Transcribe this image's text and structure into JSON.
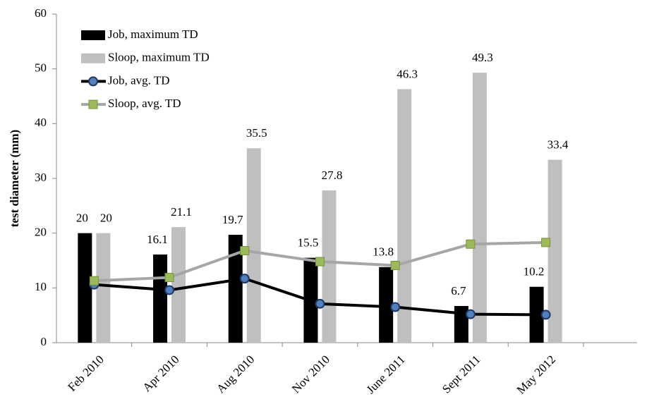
{
  "chart_data": {
    "type": "bar",
    "y_label": "test diameter (mm)",
    "categories": [
      "Feb 2010",
      "Apr 2010",
      "Aug 2010",
      "Nov 2010",
      "June 2011",
      "Sept 2011",
      "May 2012"
    ],
    "series": [
      {
        "name": "Job, maximum TD",
        "type": "bar",
        "color": "#000000",
        "values": [
          20,
          16.1,
          19.7,
          15.5,
          13.8,
          6.7,
          10.2
        ]
      },
      {
        "name": "Sloop, maximum TD",
        "type": "bar",
        "color": "#bfbfbf",
        "values": [
          20,
          21.1,
          35.5,
          27.8,
          46.3,
          49.3,
          33.4
        ]
      },
      {
        "name": "Job, avg. TD",
        "type": "line",
        "color": "#000000",
        "marker": "circle",
        "marker_color": "#1f3864",
        "values": [
          10.6,
          9.6,
          11.7,
          7.1,
          6.5,
          5.2,
          5.1
        ]
      },
      {
        "name": "Sloop, avg. TD",
        "type": "line",
        "color": "#a6a6a6",
        "marker": "square",
        "marker_color": "#9bbb59",
        "values": [
          11.3,
          11.9,
          16.8,
          14.8,
          14.1,
          18.0,
          18.3
        ]
      }
    ],
    "ylim": [
      0,
      60
    ],
    "yticks": [
      0,
      10,
      20,
      30,
      40,
      50,
      60
    ],
    "grid": false,
    "legend": "top-left"
  }
}
